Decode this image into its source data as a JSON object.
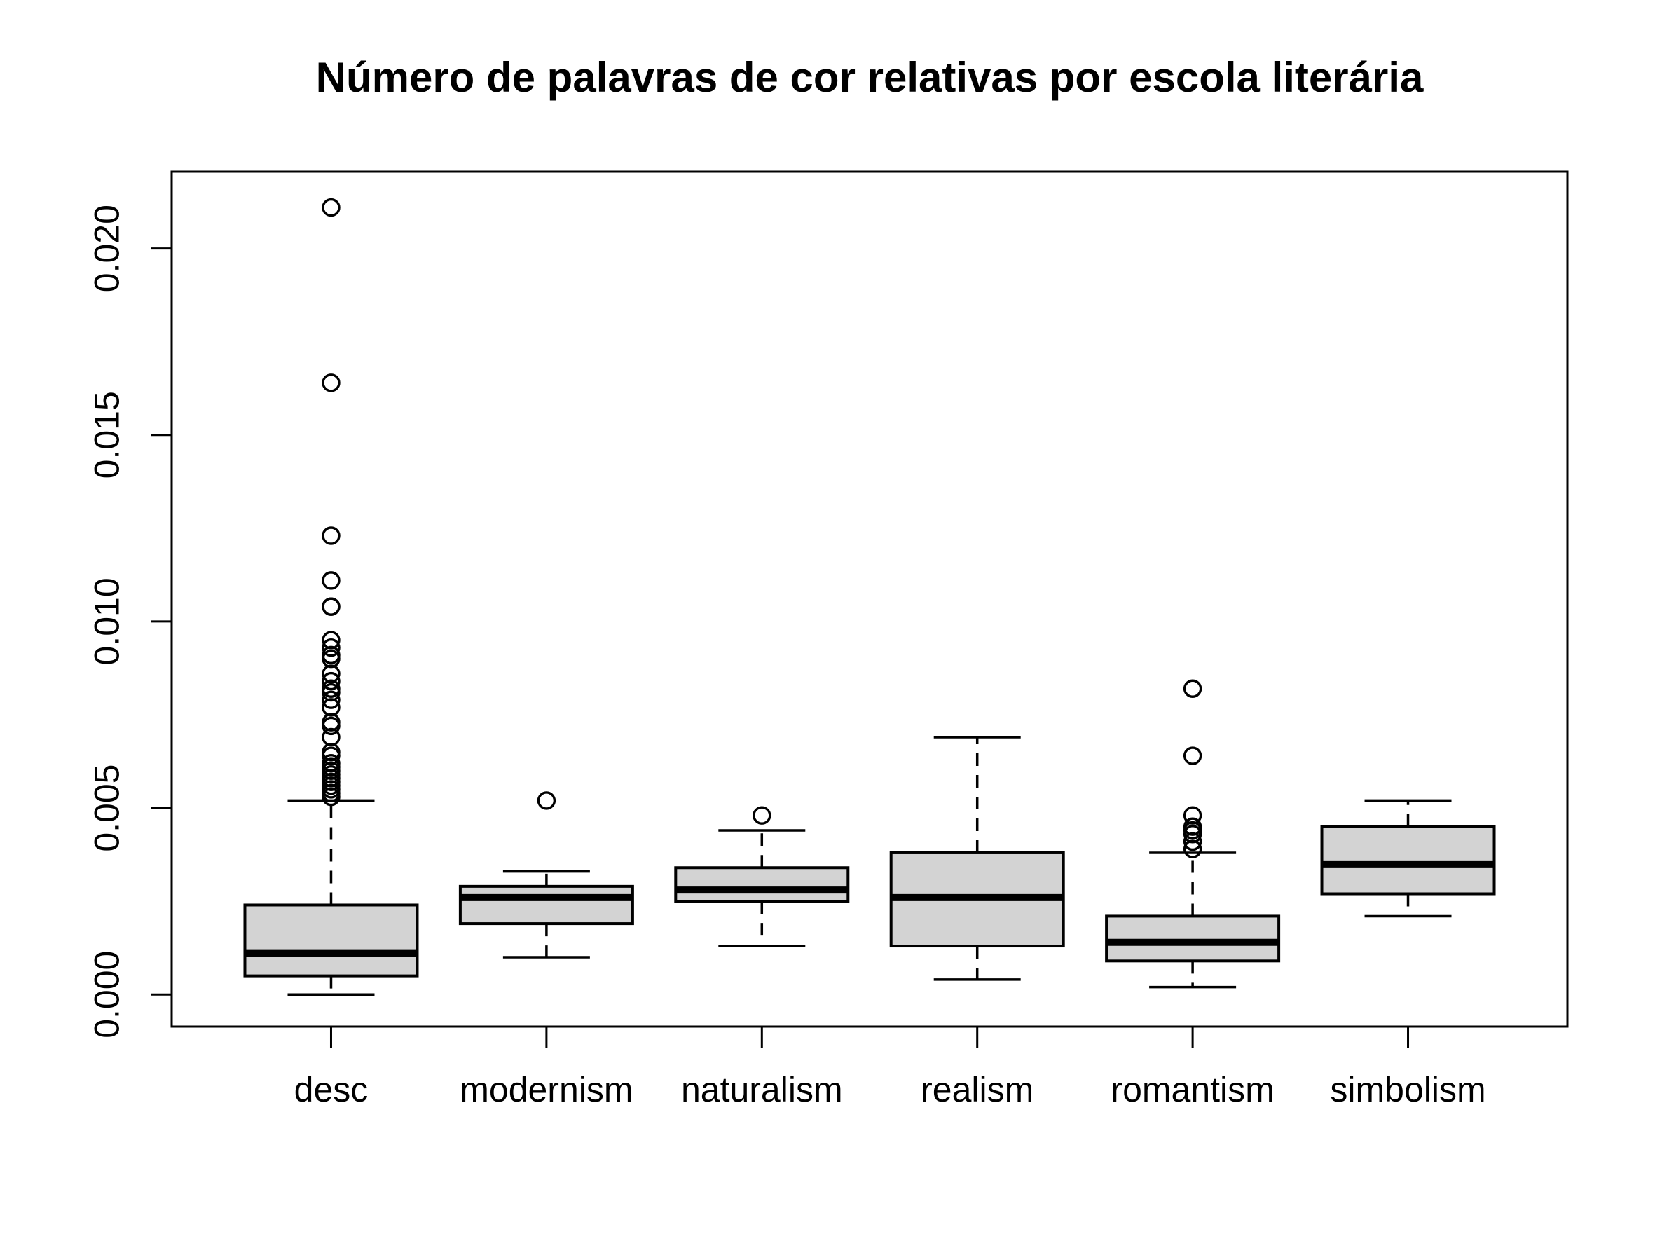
{
  "title": "Número de palavras de cor relativas por escola literária",
  "chart_data": {
    "type": "boxplot",
    "title": "Número de palavras de cor relativas por escola literária",
    "xlabel": "",
    "ylabel": "",
    "grid": false,
    "legend_position": "none",
    "background": "#ffffff",
    "box_fill": "#d3d3d3",
    "stroke_color": "#000000",
    "categories": [
      "desc",
      "modernism",
      "naturalism",
      "realism",
      "romantism",
      "simbolism"
    ],
    "ylim": [
      -0.00086,
      0.02206
    ],
    "yticks": [
      0.0,
      0.005,
      0.01,
      0.015,
      0.02
    ],
    "ytick_labels": [
      "0.000",
      "0.005",
      "0.010",
      "0.015",
      "0.020"
    ],
    "series": [
      {
        "name": "desc",
        "whisker_low": 0.0,
        "q1": 0.0005,
        "median": 0.0011,
        "q3": 0.0024,
        "whisker_high": 0.0052,
        "outliers": [
          0.0211,
          0.0164,
          0.0123,
          0.0111,
          0.0104,
          0.0104,
          0.0095,
          0.0093,
          0.0091,
          0.009,
          0.0086,
          0.0084,
          0.0082,
          0.0081,
          0.0079,
          0.0077,
          0.0073,
          0.0072,
          0.0069,
          0.0065,
          0.0064,
          0.0062,
          0.0061,
          0.006,
          0.0059,
          0.0058,
          0.0057,
          0.0056,
          0.0055,
          0.0054,
          0.0053
        ]
      },
      {
        "name": "modernism",
        "whisker_low": 0.001,
        "q1": 0.0019,
        "median": 0.0026,
        "q3": 0.0029,
        "whisker_high": 0.0033,
        "outliers": [
          0.0052
        ]
      },
      {
        "name": "naturalism",
        "whisker_low": 0.0013,
        "q1": 0.0025,
        "median": 0.0028,
        "q3": 0.0034,
        "whisker_high": 0.0044,
        "outliers": [
          0.0048
        ]
      },
      {
        "name": "realism",
        "whisker_low": 0.0004,
        "q1": 0.0013,
        "median": 0.0026,
        "q3": 0.0038,
        "whisker_high": 0.0069,
        "outliers": []
      },
      {
        "name": "romantism",
        "whisker_low": 0.0002,
        "q1": 0.0009,
        "median": 0.0014,
        "q3": 0.0021,
        "whisker_high": 0.0038,
        "outliers": [
          0.0082,
          0.0064,
          0.0048,
          0.0045,
          0.0044,
          0.0043,
          0.0041,
          0.0039
        ]
      },
      {
        "name": "simbolism",
        "whisker_low": 0.0021,
        "q1": 0.0027,
        "median": 0.0035,
        "q3": 0.0045,
        "whisker_high": 0.0052,
        "outliers": []
      }
    ]
  }
}
